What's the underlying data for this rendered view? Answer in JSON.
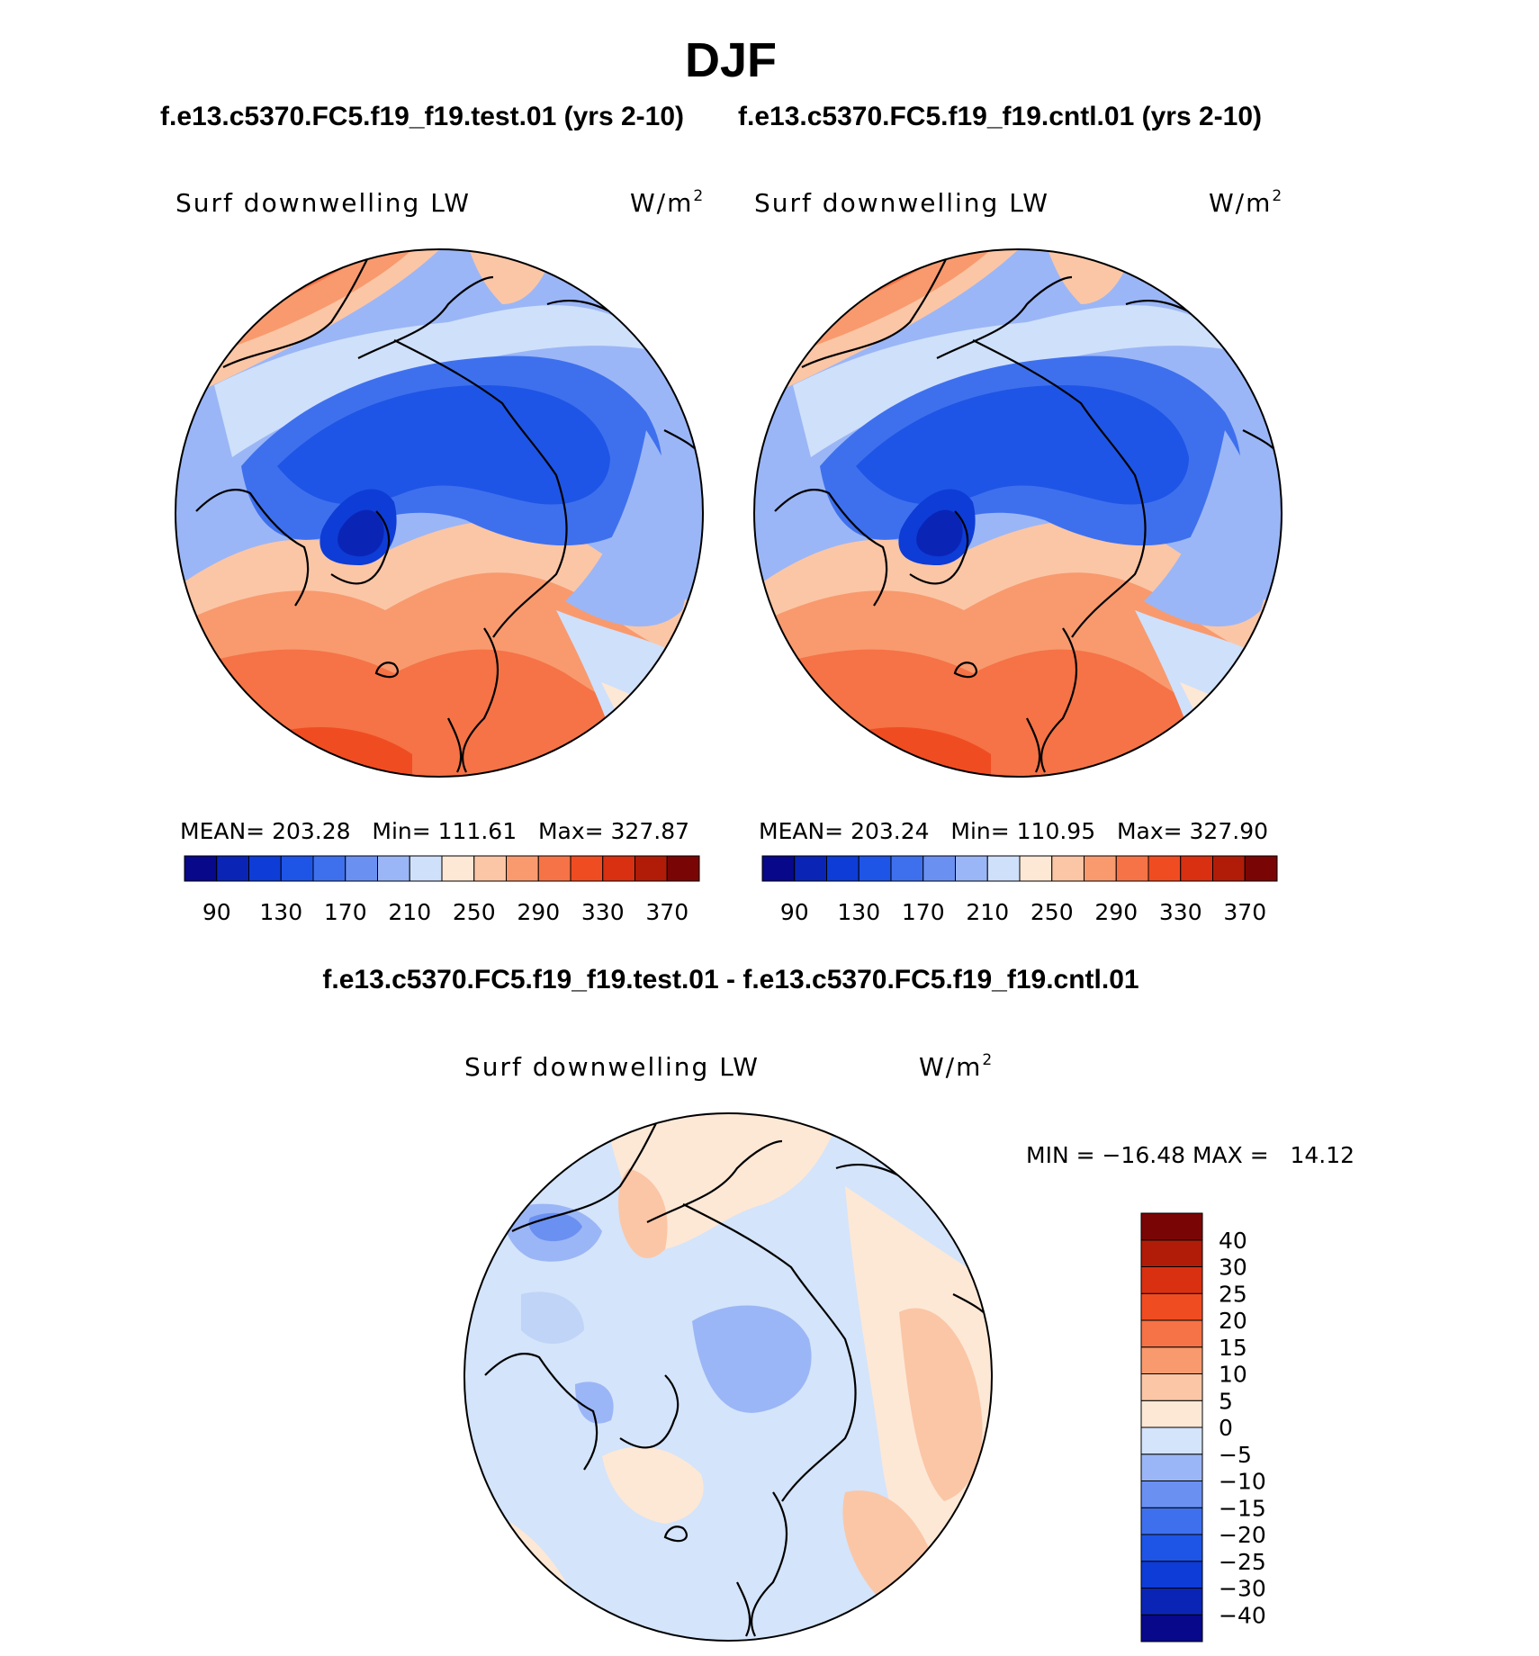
{
  "season": "DJF",
  "header": {
    "left_case": "f.e13.c5370.FC5.f19_f19.test.01 (yrs 2-10)",
    "right_case": "f.e13.c5370.FC5.f19_f19.cntl.01 (yrs 2-10)",
    "diff_title": "f.e13.c5370.FC5.f19_f19.test.01 - f.e13.c5370.FC5.f19_f19.cntl.01"
  },
  "colors": {
    "abs_palette": [
      "#08088a",
      "#0a25b5",
      "#0e3cd6",
      "#1e55e6",
      "#3e70ee",
      "#6a90f2",
      "#9bb6f6",
      "#cfe0fa",
      "#fde8d6",
      "#fbc6a6",
      "#f89a6e",
      "#f57346",
      "#f04c22",
      "#d93012",
      "#b01c08",
      "#7a0505"
    ],
    "diff_palette": [
      "#08088a",
      "#0a25b5",
      "#0e3cd6",
      "#1e55e6",
      "#3e70ee",
      "#6a90f2",
      "#9bb6f6",
      "#d4e4fa",
      "#fde8d6",
      "#fbc6a6",
      "#f89a6e",
      "#f57346",
      "#f04c22",
      "#d93012",
      "#b01c08",
      "#7a0505"
    ]
  },
  "chart_data": [
    {
      "type": "heatmap",
      "panel": "test",
      "projection": "north-polar-stereographic",
      "title": "Surf downwelling LW",
      "units": "W/m²",
      "units_base": "W/m",
      "units_sup": "2",
      "stats": {
        "mean": "203.28",
        "min": "111.61",
        "max": "327.87"
      },
      "stats_text": "MEAN= 203.28   Min= 111.61   Max= 327.87",
      "colorbar": {
        "levels": [
          90,
          110,
          130,
          150,
          170,
          190,
          210,
          230,
          250,
          270,
          290,
          310,
          330,
          350,
          370
        ],
        "tick_labels": [
          "90",
          "130",
          "170",
          "210",
          "250",
          "290",
          "330",
          "370"
        ],
        "orientation": "horizontal"
      }
    },
    {
      "type": "heatmap",
      "panel": "control",
      "projection": "north-polar-stereographic",
      "title": "Surf downwelling LW",
      "units": "W/m²",
      "units_base": "W/m",
      "units_sup": "2",
      "stats": {
        "mean": "203.24",
        "min": "110.95",
        "max": "327.90"
      },
      "stats_text": "MEAN= 203.24   Min= 110.95   Max= 327.90",
      "colorbar": {
        "levels": [
          90,
          110,
          130,
          150,
          170,
          190,
          210,
          230,
          250,
          270,
          290,
          310,
          330,
          350,
          370
        ],
        "tick_labels": [
          "90",
          "130",
          "170",
          "210",
          "250",
          "290",
          "330",
          "370"
        ],
        "orientation": "horizontal"
      }
    },
    {
      "type": "heatmap",
      "panel": "difference",
      "projection": "north-polar-stereographic",
      "title": "Surf downwelling LW",
      "units": "W/m²",
      "units_base": "W/m",
      "units_sup": "2",
      "stats": {
        "min": "-16.48",
        "max": "14.12"
      },
      "stats_text": "MIN = −16.48 MAX =   14.12",
      "colorbar": {
        "levels": [
          -40,
          -30,
          -25,
          -20,
          -15,
          -10,
          -5,
          0,
          5,
          10,
          15,
          20,
          25,
          30,
          40
        ],
        "tick_labels": [
          "40",
          "30",
          "25",
          "20",
          "15",
          "10",
          "5",
          "0",
          "−5",
          "−10",
          "−15",
          "−20",
          "−25",
          "−30",
          "−40"
        ],
        "orientation": "vertical"
      }
    }
  ]
}
